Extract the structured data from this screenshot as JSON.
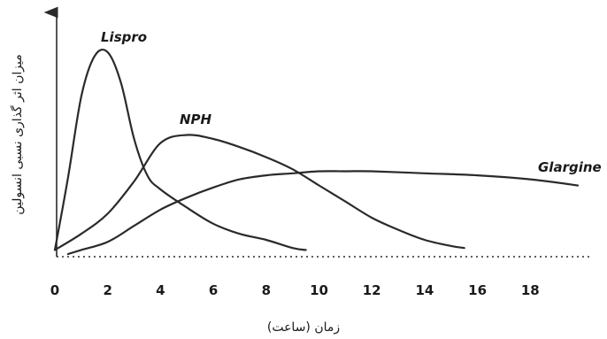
{
  "chart_data": {
    "type": "line",
    "xlabel": "زمان (ساعت)",
    "ylabel": "میزان اثر گذاری نسبی انسولین",
    "xlim": [
      0,
      20
    ],
    "ylim": [
      0,
      1
    ],
    "x_ticks": [
      0,
      2,
      4,
      6,
      8,
      10,
      12,
      14,
      16,
      18
    ],
    "grid": false,
    "series": [
      {
        "name": "Lispro",
        "x": [
          0,
          0.5,
          1,
          1.5,
          2,
          2.5,
          3,
          3.5,
          4,
          5,
          6,
          7,
          8,
          9,
          9.5
        ],
        "y": [
          0.02,
          0.38,
          0.78,
          0.98,
          1.0,
          0.85,
          0.57,
          0.39,
          0.32,
          0.23,
          0.15,
          0.1,
          0.07,
          0.03,
          0.02
        ]
      },
      {
        "name": "NPH",
        "x": [
          0,
          1,
          2,
          3,
          4,
          5,
          6,
          7,
          8,
          9,
          10,
          11,
          12,
          13,
          14,
          15,
          15.5
        ],
        "y": [
          0.02,
          0.1,
          0.2,
          0.36,
          0.55,
          0.59,
          0.57,
          0.53,
          0.48,
          0.42,
          0.34,
          0.26,
          0.18,
          0.12,
          0.07,
          0.04,
          0.03
        ]
      },
      {
        "name": "Glargine",
        "x": [
          0.5,
          1,
          2,
          3,
          4,
          5,
          6,
          7,
          8,
          9,
          10,
          11,
          12,
          14,
          16,
          18,
          19.8
        ],
        "y": [
          0.0,
          0.02,
          0.06,
          0.14,
          0.22,
          0.28,
          0.33,
          0.37,
          0.39,
          0.4,
          0.41,
          0.41,
          0.41,
          0.4,
          0.39,
          0.37,
          0.34
        ]
      }
    ]
  }
}
